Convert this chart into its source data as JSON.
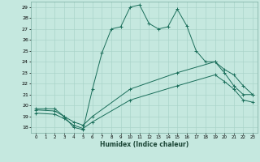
{
  "xlabel": "Humidex (Indice chaleur)",
  "ylabel": "",
  "bg_color": "#c5e8df",
  "grid_color": "#aad4ca",
  "line_color": "#1a6e5a",
  "ylim": [
    17.5,
    29.5
  ],
  "xlim": [
    -0.5,
    23.5
  ],
  "yticks": [
    18,
    19,
    20,
    21,
    22,
    23,
    24,
    25,
    26,
    27,
    28,
    29
  ],
  "xticks": [
    0,
    1,
    2,
    3,
    4,
    5,
    6,
    7,
    8,
    9,
    10,
    11,
    12,
    13,
    14,
    15,
    16,
    17,
    18,
    19,
    20,
    21,
    22,
    23
  ],
  "line1_x": [
    0,
    1,
    2,
    3,
    4,
    5,
    6,
    7,
    8,
    9,
    10,
    11,
    12,
    13,
    14,
    15,
    16,
    17,
    18,
    19,
    20,
    21,
    22,
    23
  ],
  "line1_y": [
    19.7,
    19.7,
    19.7,
    19.0,
    18.0,
    17.8,
    21.5,
    24.8,
    27.0,
    27.2,
    29.0,
    29.2,
    27.5,
    27.0,
    27.2,
    28.8,
    27.3,
    25.0,
    24.0,
    24.0,
    23.0,
    21.8,
    21.0,
    21.0
  ],
  "line2_x": [
    0,
    2,
    3,
    4,
    5,
    6,
    10,
    15,
    19,
    20,
    21,
    22,
    23
  ],
  "line2_y": [
    19.6,
    19.5,
    19.0,
    18.5,
    18.2,
    19.0,
    21.5,
    23.0,
    24.0,
    23.3,
    22.8,
    21.8,
    21.0
  ],
  "line3_x": [
    0,
    2,
    3,
    4,
    5,
    6,
    10,
    15,
    19,
    20,
    21,
    22,
    23
  ],
  "line3_y": [
    19.3,
    19.2,
    18.8,
    18.2,
    17.9,
    18.5,
    20.5,
    21.8,
    22.8,
    22.2,
    21.5,
    20.5,
    20.3
  ]
}
